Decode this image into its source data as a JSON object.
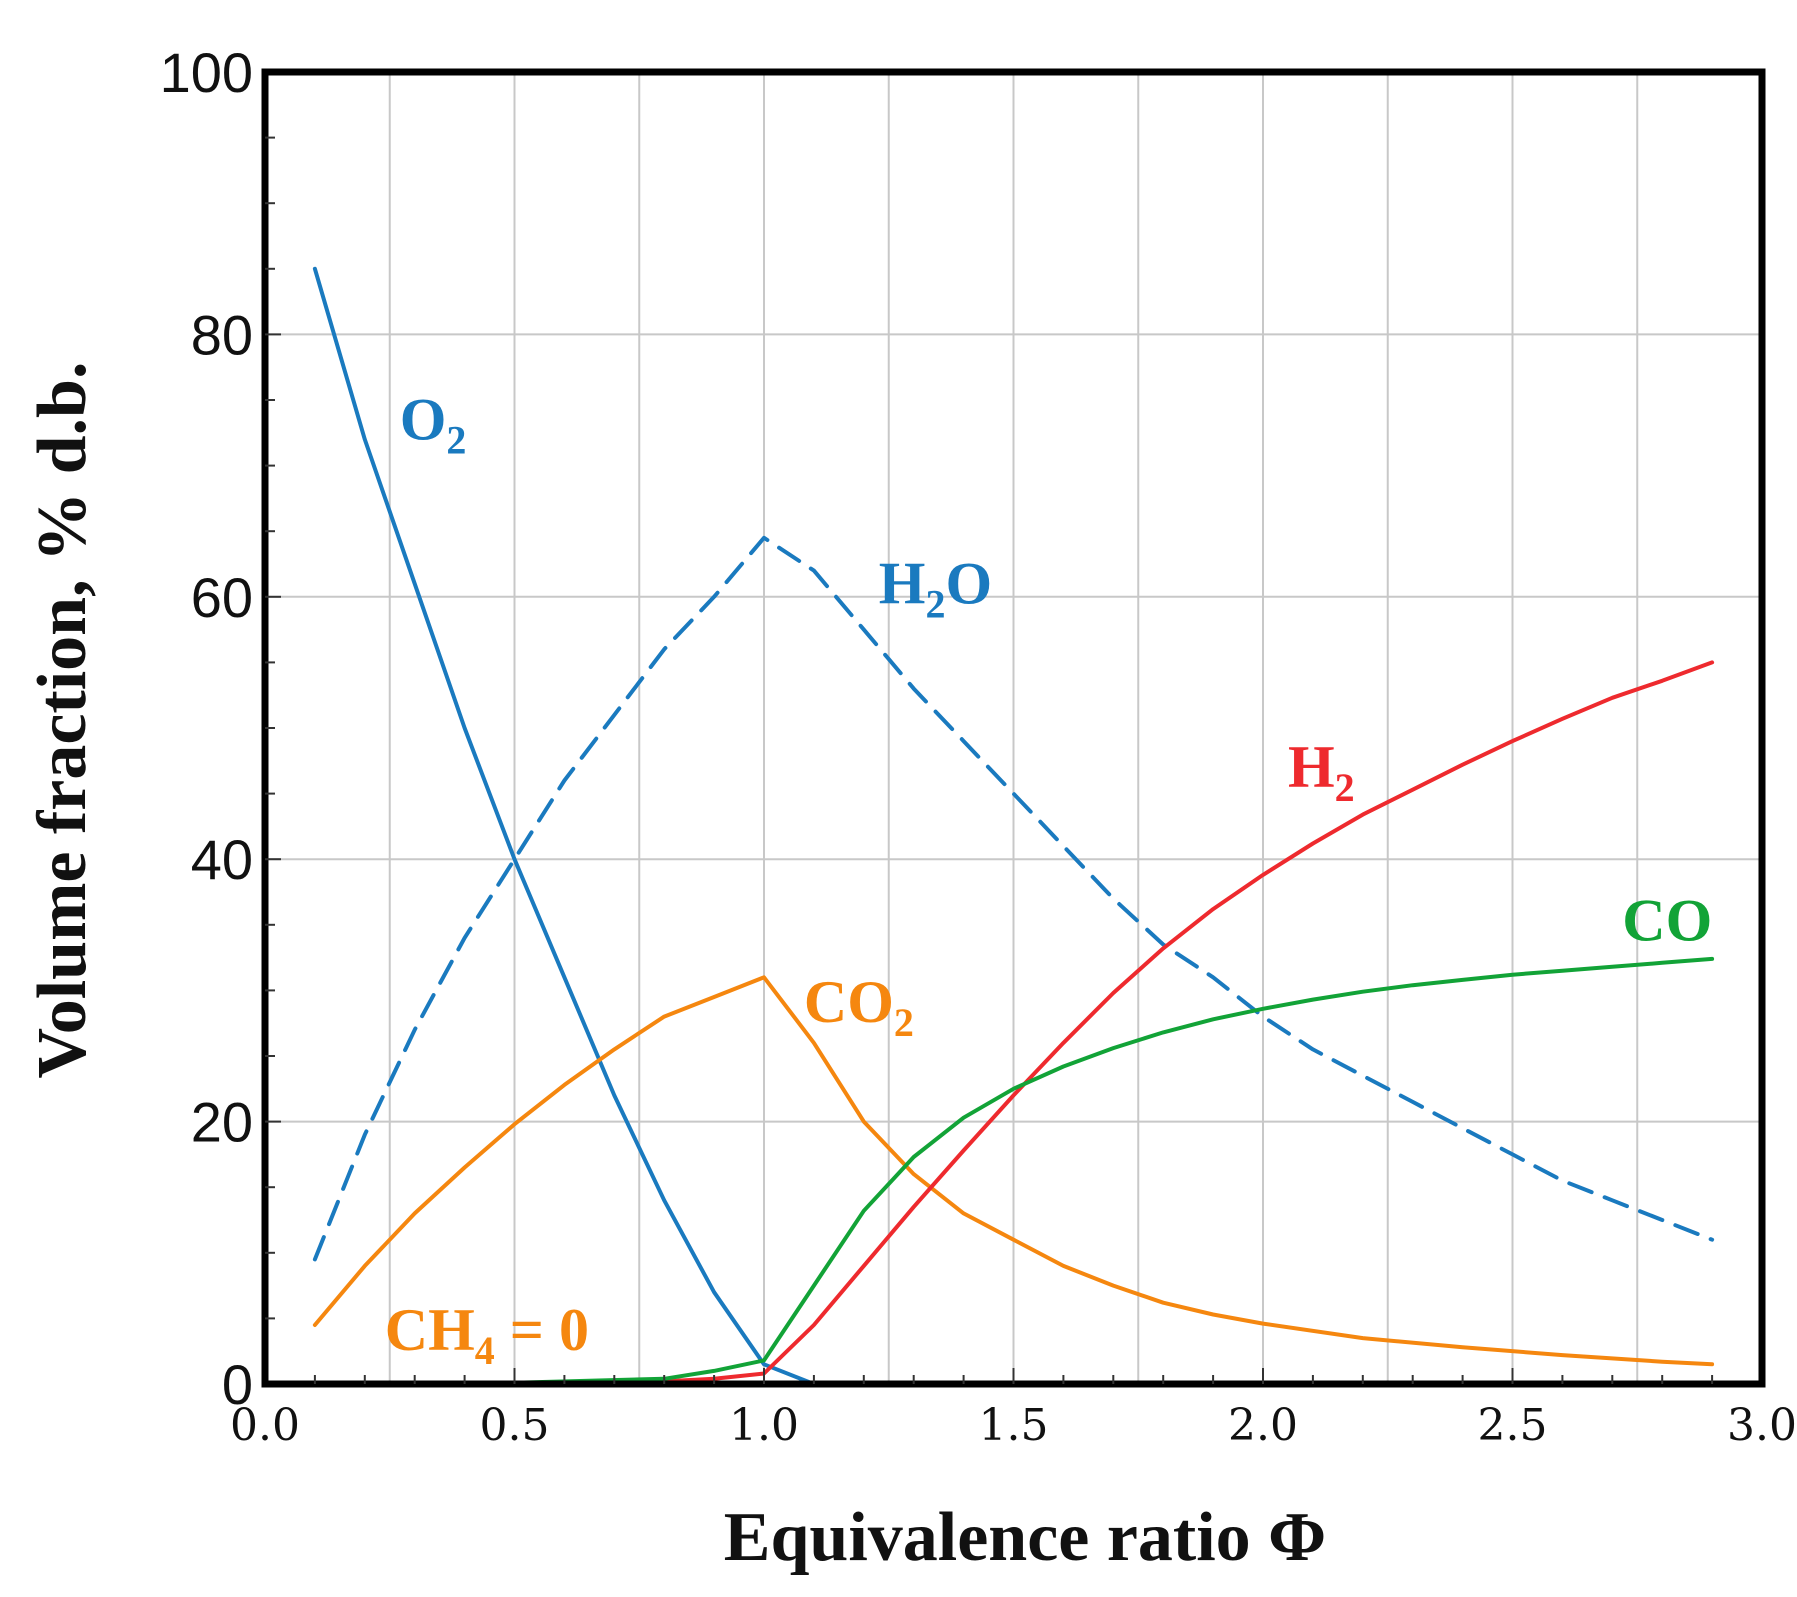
{
  "chart_data": {
    "type": "line",
    "xlabel": "Equivalence ratio Φ",
    "ylabel": "Volume fraction, % d.b.",
    "xlim": [
      0,
      3
    ],
    "ylim": [
      0,
      100
    ],
    "x_ticks": [
      "0.0",
      "0.5",
      "1.0",
      "1.5",
      "2.0",
      "2.5",
      "3.0"
    ],
    "y_ticks": [
      "0",
      "20",
      "40",
      "60",
      "80",
      "100"
    ],
    "grid": true,
    "series": [
      {
        "name": "O2",
        "label_main": "O",
        "label_sub": "2",
        "label_tail": "",
        "color": "#1a7abf",
        "dashed": false,
        "x": [
          0.1,
          0.2,
          0.3,
          0.4,
          0.5,
          0.6,
          0.7,
          0.8,
          0.9,
          1.0,
          1.1
        ],
        "y": [
          85,
          72,
          61,
          50,
          40,
          31,
          22,
          14,
          7,
          1.5,
          0
        ]
      },
      {
        "name": "H2O",
        "label_main": "H",
        "label_sub": "2",
        "label_tail": "O",
        "color": "#1a7abf",
        "dashed": true,
        "x": [
          0.1,
          0.2,
          0.3,
          0.4,
          0.5,
          0.6,
          0.7,
          0.8,
          0.9,
          1.0,
          1.1,
          1.2,
          1.3,
          1.4,
          1.5,
          1.6,
          1.7,
          1.8,
          1.9,
          2.0,
          2.1,
          2.2,
          2.3,
          2.4,
          2.5,
          2.6,
          2.7,
          2.8,
          2.9
        ],
        "y": [
          9.5,
          19,
          27,
          34,
          40,
          46,
          51,
          56,
          60,
          64.5,
          62,
          57.5,
          53,
          49,
          45,
          41,
          37,
          33.5,
          31,
          28,
          25.5,
          23.5,
          21.5,
          19.5,
          17.5,
          15.5,
          14,
          12.5,
          11
        ]
      },
      {
        "name": "CO2",
        "label_main": "CO",
        "label_sub": "2",
        "label_tail": "",
        "color": "#f5870f",
        "dashed": false,
        "x": [
          0.1,
          0.2,
          0.3,
          0.4,
          0.5,
          0.6,
          0.7,
          0.8,
          0.9,
          1.0,
          1.1,
          1.2,
          1.3,
          1.4,
          1.5,
          1.6,
          1.7,
          1.8,
          1.9,
          2.0,
          2.2,
          2.4,
          2.6,
          2.8,
          2.9
        ],
        "y": [
          4.5,
          9,
          13,
          16.5,
          19.8,
          22.8,
          25.5,
          28,
          29.5,
          31,
          26,
          20,
          16,
          13,
          11,
          9,
          7.5,
          6.2,
          5.3,
          4.6,
          3.5,
          2.8,
          2.2,
          1.7,
          1.5
        ]
      },
      {
        "name": "H2",
        "label_main": "H",
        "label_sub": "2",
        "label_tail": "",
        "color": "#ee2a2e",
        "dashed": false,
        "x": [
          0.1,
          0.5,
          0.8,
          0.9,
          1.0,
          1.1,
          1.2,
          1.3,
          1.4,
          1.5,
          1.6,
          1.7,
          1.8,
          1.9,
          2.0,
          2.1,
          2.2,
          2.3,
          2.4,
          2.5,
          2.6,
          2.7,
          2.8,
          2.9
        ],
        "y": [
          0,
          0,
          0.2,
          0.4,
          0.8,
          4.5,
          9,
          13.5,
          17.8,
          22,
          26,
          29.8,
          33.2,
          36.2,
          38.8,
          41.2,
          43.4,
          45.3,
          47.2,
          49,
          50.7,
          52.3,
          53.6,
          55
        ]
      },
      {
        "name": "CO",
        "label_main": "CO",
        "label_sub": "",
        "label_tail": "",
        "color": "#12a337",
        "dashed": false,
        "x": [
          0.1,
          0.5,
          0.8,
          0.9,
          1.0,
          1.1,
          1.2,
          1.3,
          1.4,
          1.5,
          1.6,
          1.7,
          1.8,
          1.9,
          2.0,
          2.1,
          2.2,
          2.3,
          2.4,
          2.5,
          2.6,
          2.7,
          2.8,
          2.9
        ],
        "y": [
          0,
          0.1,
          0.4,
          1,
          1.8,
          7.5,
          13.2,
          17.3,
          20.3,
          22.5,
          24.2,
          25.6,
          26.8,
          27.8,
          28.6,
          29.3,
          29.9,
          30.4,
          30.8,
          31.2,
          31.5,
          31.8,
          32.1,
          32.4
        ]
      }
    ],
    "annotations": [
      {
        "text_main": "CH",
        "text_sub": "4",
        "text_tail": " = 0",
        "color": "#f5870f"
      }
    ]
  }
}
